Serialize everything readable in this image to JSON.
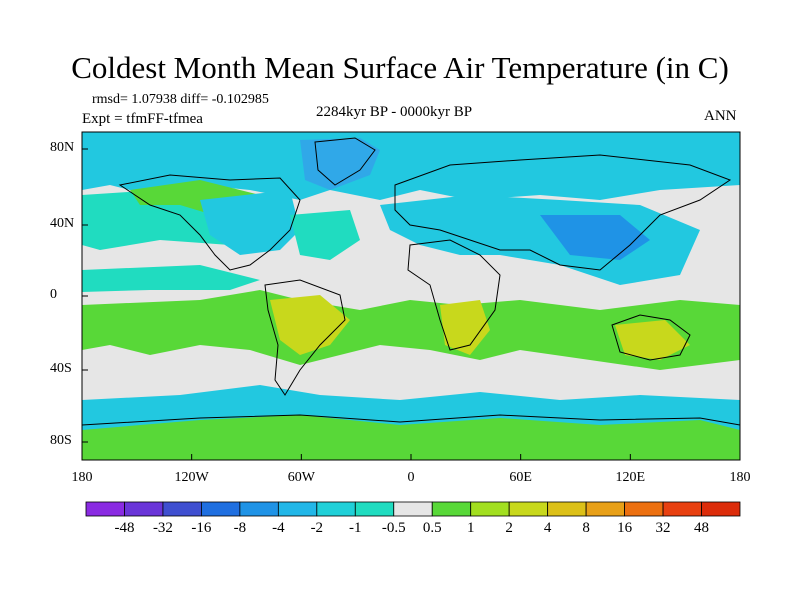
{
  "title": "Coldest Month Mean Surface Air Temperature (in C)",
  "stats": "rmsd= 1.07938 diff= -0.102985",
  "experiment": "Expt = tfmFF-tfmea",
  "period": "2284kyr BP - 0000kyr BP",
  "season": "ANN",
  "y_ticks": [
    "80N",
    "40N",
    "0",
    "40S",
    "80S"
  ],
  "x_ticks": [
    "180",
    "120W",
    "60W",
    "0",
    "60E",
    "120E",
    "180"
  ],
  "colorbar": {
    "labels": [
      "-48",
      "-32",
      "-16",
      "-8",
      "-4",
      "-2",
      "-1",
      "-0.5",
      "0.5",
      "1",
      "2",
      "4",
      "8",
      "16",
      "32",
      "48"
    ],
    "colors": [
      "#8a2be2",
      "#6a35d8",
      "#3f4fd0",
      "#1f6fe0",
      "#1f93e6",
      "#22b7e8",
      "#20d0d8",
      "#20dcc0",
      "#e6e6e6",
      "#58d838",
      "#a2df20",
      "#c8d81c",
      "#dcc018",
      "#e8a018",
      "#ec7010",
      "#e84010",
      "#dc2c0a"
    ]
  }
}
